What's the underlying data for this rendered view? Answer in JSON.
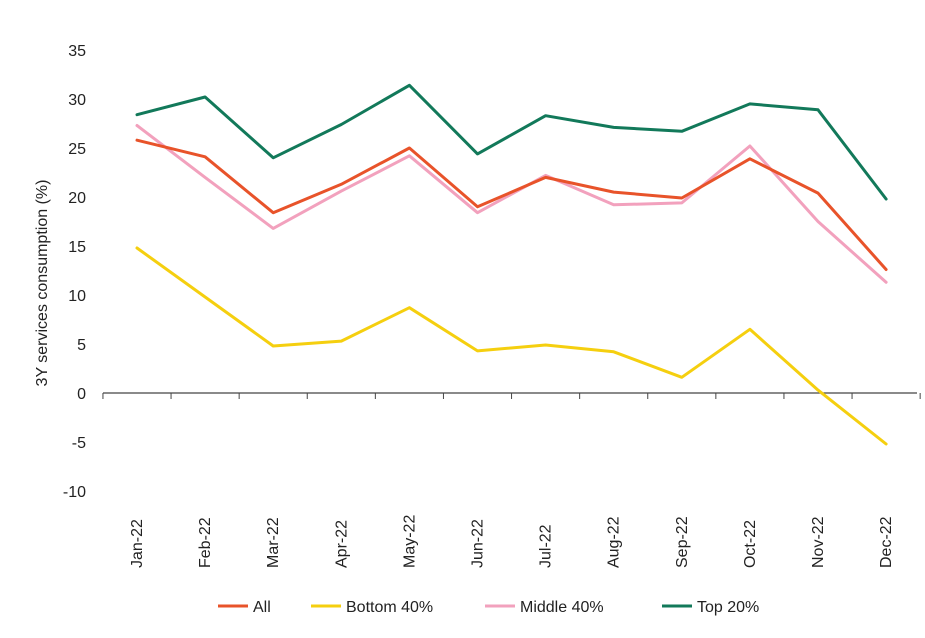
{
  "chart_data": {
    "type": "line",
    "title": "",
    "xlabel": "",
    "ylabel": "3Y services consumption (%)",
    "categories": [
      "Jan-22",
      "Feb-22",
      "Mar-22",
      "Apr-22",
      "May-22",
      "Jun-22",
      "Jul-22",
      "Aug-22",
      "Sep-22",
      "Oct-22",
      "Nov-22",
      "Dec-22"
    ],
    "ylim": [
      -10,
      35
    ],
    "yticks": [
      -10,
      -5,
      0,
      5,
      10,
      15,
      20,
      25,
      30,
      35
    ],
    "grid": false,
    "legend_position": "bottom",
    "series": [
      {
        "name": "All",
        "color": "#e8532a",
        "values": [
          25.8,
          24.1,
          18.4,
          21.3,
          25.0,
          19.0,
          22.0,
          20.5,
          19.9,
          23.9,
          20.4,
          12.6
        ]
      },
      {
        "name": "Bottom 40%",
        "color": "#f5cf0f",
        "values": [
          14.8,
          9.8,
          4.8,
          5.3,
          8.7,
          4.3,
          4.9,
          4.2,
          1.6,
          6.5,
          0.3,
          -5.2
        ]
      },
      {
        "name": "Middle 40%",
        "color": "#f2a1bd",
        "values": [
          27.3,
          22.0,
          16.8,
          20.6,
          24.2,
          18.4,
          22.2,
          19.2,
          19.4,
          25.2,
          17.5,
          11.3
        ]
      },
      {
        "name": "Top 20%",
        "color": "#12795a",
        "values": [
          28.4,
          30.2,
          24.0,
          27.4,
          31.4,
          24.4,
          28.3,
          27.1,
          26.7,
          29.5,
          28.9,
          19.8
        ]
      }
    ]
  }
}
